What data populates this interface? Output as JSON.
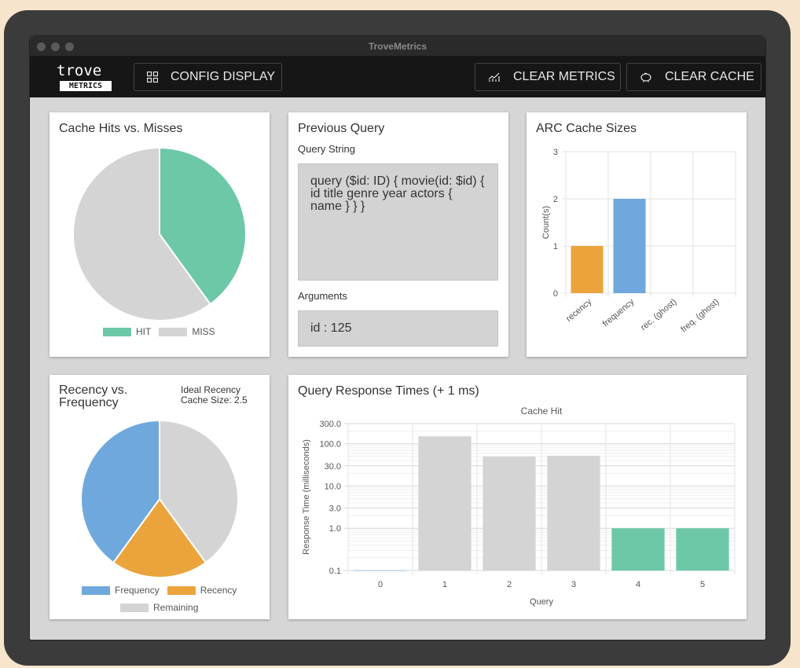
{
  "window": {
    "title": "TroveMetrics"
  },
  "appbar": {
    "logo_word": "trove",
    "logo_badge": "METRICS",
    "config_label": "CONFIG DISPLAY",
    "clear_metrics_label": "CLEAR METRICS",
    "clear_cache_label": "CLEAR CACHE"
  },
  "hits_card": {
    "title": "Cache Hits vs. Misses",
    "legend": [
      "HIT",
      "MISS"
    ]
  },
  "query_card": {
    "title": "Previous Query",
    "query_label": "Query String",
    "query_value": "query ($id: ID) { movie(id: $id) { id title genre year actors { name } } }",
    "args_label": "Arguments",
    "args_value": "id : 125"
  },
  "arc_card": {
    "title": "ARC Cache Sizes"
  },
  "rf_card": {
    "title": "Recency vs. Frequency",
    "ideal": "Ideal Recency Cache Size: 2.5"
  },
  "resp_card": {
    "title": "Query Response Times (+ 1 ms)"
  },
  "colors": {
    "hit": "#6cc8a6",
    "miss": "#d4d4d4",
    "recency": "#eba43c",
    "frequency": "#6fa8dc",
    "remaining": "#d4d4d4"
  },
  "chart_data": [
    {
      "type": "pie",
      "labels": [
        "HIT",
        "MISS"
      ],
      "values": [
        40,
        60
      ],
      "legend": "bottom"
    },
    {
      "type": "bar",
      "categories": [
        "recency",
        "frequency",
        "rec. (ghost)",
        "freq. (ghost)"
      ],
      "values": [
        1,
        2,
        0,
        0
      ],
      "ylabel": "Count(s)",
      "yticks": [
        "0",
        "1",
        "2",
        "3"
      ],
      "ylim": [
        0,
        3
      ],
      "grid": true
    },
    {
      "type": "pie",
      "labels": [
        "Frequency",
        "Recency",
        "Remaining"
      ],
      "values": [
        2,
        1,
        2
      ],
      "legend": "bottom"
    },
    {
      "type": "bar",
      "title": "Cache Hit",
      "categories": [
        "0",
        "1",
        "2",
        "3",
        "4",
        "5"
      ],
      "values": [
        0.1,
        150,
        50,
        52,
        1,
        1
      ],
      "hit": [
        false,
        false,
        false,
        false,
        true,
        true
      ],
      "xlabel": "Query",
      "ylabel": "Response Time (milliseconds)",
      "yscale": "log",
      "yticks": [
        "0.1",
        "1.0",
        "3.0",
        "10.0",
        "30.0",
        "100.0",
        "300.0"
      ],
      "grid": true
    }
  ]
}
